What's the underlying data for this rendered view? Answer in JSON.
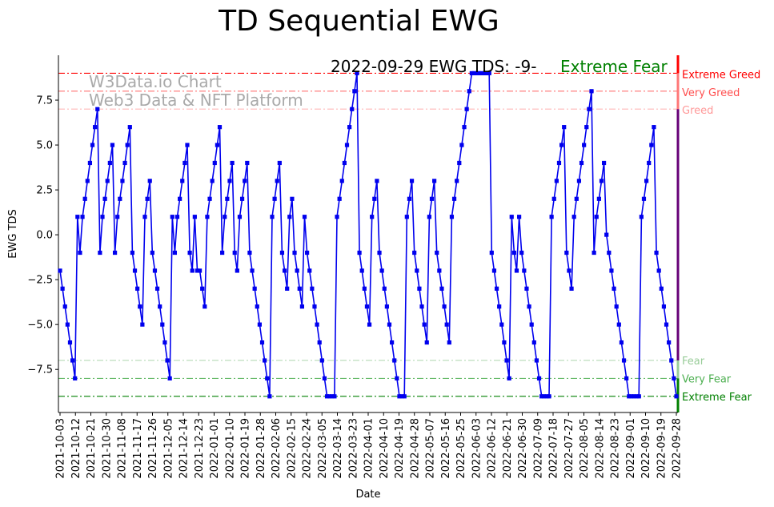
{
  "chart_data": {
    "type": "line",
    "title": "TD Sequential EWG",
    "xlabel": "Date",
    "ylabel": "EWG TDS",
    "ylim": [
      -9.9,
      10
    ],
    "yticks": [
      -7.5,
      -5.0,
      -2.5,
      0.0,
      2.5,
      5.0,
      7.5
    ],
    "ytick_labels": [
      "−7.5",
      "−5.0",
      "−2.5",
      "0.0",
      "2.5",
      "5.0",
      "7.5"
    ],
    "start_date": "2021-10-03",
    "end_date": "2022-09-28",
    "xtick_labels": [
      "2021-10-03",
      "2021-10-12",
      "2021-10-21",
      "2021-10-30",
      "2021-11-08",
      "2021-11-17",
      "2021-11-26",
      "2021-12-05",
      "2021-12-14",
      "2021-12-23",
      "2022-01-01",
      "2022-01-10",
      "2022-01-19",
      "2022-01-28",
      "2022-02-06",
      "2022-02-15",
      "2022-02-24",
      "2022-03-05",
      "2022-03-14",
      "2022-03-23",
      "2022-04-01",
      "2022-04-10",
      "2022-04-19",
      "2022-04-28",
      "2022-05-07",
      "2022-05-16",
      "2022-05-25",
      "2022-06-03",
      "2022-06-12",
      "2022-06-21",
      "2022-06-30",
      "2022-07-09",
      "2022-07-18",
      "2022-07-27",
      "2022-08-05",
      "2022-08-14",
      "2022-08-23",
      "2022-09-01",
      "2022-09-10",
      "2022-09-19",
      "2022-09-28"
    ],
    "series": [
      {
        "name": "EWG TDS",
        "color": "#0000ee",
        "values": [
          -2,
          -3,
          -4,
          -5,
          -6,
          -7,
          -8,
          1,
          -1,
          1,
          2,
          3,
          4,
          5,
          6,
          7,
          -1,
          1,
          2,
          3,
          4,
          5,
          -1,
          1,
          2,
          3,
          4,
          5,
          6,
          -1,
          -2,
          -3,
          -4,
          -5,
          1,
          2,
          3,
          -1,
          -2,
          -3,
          -4,
          -5,
          -6,
          -7,
          -8,
          1,
          -1,
          1,
          2,
          3,
          4,
          5,
          -1,
          -2,
          1,
          -2,
          -2,
          -3,
          -4,
          1,
          2,
          3,
          4,
          5,
          6,
          -1,
          1,
          2,
          3,
          4,
          -1,
          -2,
          1,
          2,
          3,
          4,
          -1,
          -2,
          -3,
          -4,
          -5,
          -6,
          -7,
          -8,
          -9,
          1,
          2,
          3,
          4,
          -1,
          -2,
          -3,
          1,
          2,
          -1,
          -2,
          -3,
          -4,
          1,
          -1,
          -2,
          -3,
          -4,
          -5,
          -6,
          -7,
          -8,
          -9,
          -9,
          -9,
          -9,
          1,
          2,
          3,
          4,
          5,
          6,
          7,
          8,
          9,
          -1,
          -2,
          -3,
          -4,
          -5,
          1,
          2,
          3,
          -1,
          -2,
          -3,
          -4,
          -5,
          -6,
          -7,
          -8,
          -9,
          -9,
          -9,
          1,
          2,
          3,
          -1,
          -2,
          -3,
          -4,
          -5,
          -6,
          1,
          2,
          3,
          -1,
          -2,
          -3,
          -4,
          -5,
          -6,
          1,
          2,
          3,
          4,
          5,
          6,
          7,
          8,
          9,
          9,
          9,
          9,
          9,
          9,
          9,
          9,
          -1,
          -2,
          -3,
          -4,
          -5,
          -6,
          -7,
          -8,
          1,
          -1,
          -2,
          1,
          -1,
          -2,
          -3,
          -4,
          -5,
          -6,
          -7,
          -8,
          -9,
          -9,
          -9,
          -9,
          1,
          2,
          3,
          4,
          5,
          6,
          -1,
          -2,
          -3,
          1,
          2,
          3,
          4,
          5,
          6,
          7,
          8,
          -1,
          1,
          2,
          3,
          4,
          0,
          -1,
          -2,
          -3,
          -4,
          -5,
          -6,
          -7,
          -8,
          -9,
          -9,
          -9,
          -9,
          -9,
          1,
          2,
          3,
          4,
          5,
          6,
          -1,
          -2,
          -3,
          -4,
          -5,
          -6,
          -7,
          -8,
          -9
        ]
      }
    ],
    "reference_lines": [
      {
        "value": 9,
        "label": "Extreme Greed",
        "color": "#ff0000",
        "opacity": 1.0
      },
      {
        "value": 8,
        "label": "Very Greed",
        "color": "#ff5050",
        "opacity": 0.8
      },
      {
        "value": 7,
        "label": "Greed",
        "color": "#ff9999",
        "opacity": 0.7
      },
      {
        "value": -7,
        "label": "Fear",
        "color": "#99cc99",
        "opacity": 0.8
      },
      {
        "value": -8,
        "label": "Very Fear",
        "color": "#4caf50",
        "opacity": 0.9
      },
      {
        "value": -9,
        "label": "Extreme Fear",
        "color": "#008000",
        "opacity": 1.0
      }
    ],
    "annotation": {
      "text": "2022-09-29 EWG TDS: -9-",
      "status": "Extreme Fear",
      "status_color": "#008000"
    },
    "watermark": [
      "W3Data.io Chart",
      "Web3 Data & NFT Platform"
    ]
  }
}
